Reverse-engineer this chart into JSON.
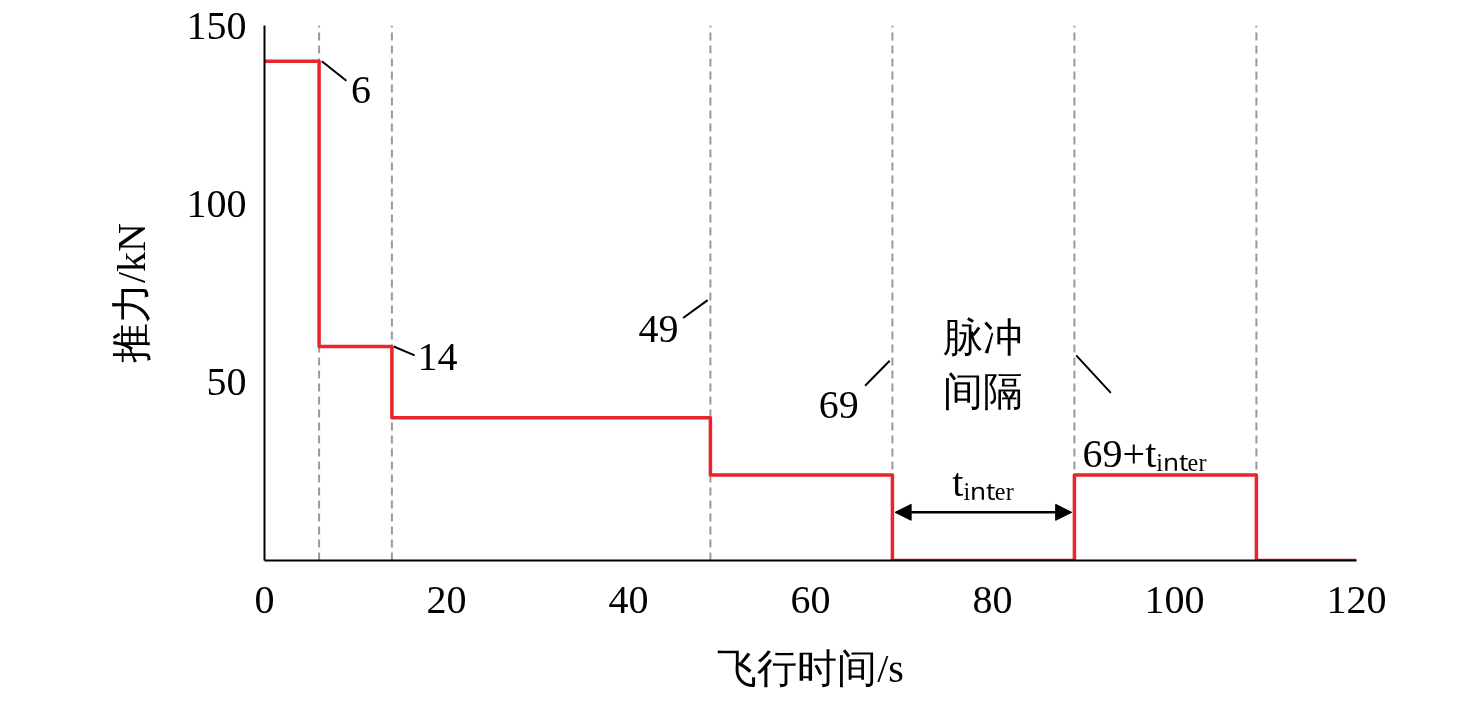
{
  "chart_data": {
    "type": "step",
    "x": [
      0,
      6,
      14,
      49,
      69,
      89,
      109,
      120
    ],
    "values": [
      140,
      60,
      40,
      24,
      0,
      24,
      0,
      0
    ],
    "color": "#e8252b",
    "xlim": [
      0,
      120
    ],
    "ylim": [
      0,
      150
    ],
    "xticks": [
      0,
      20,
      40,
      60,
      80,
      100,
      120
    ],
    "yticks": [
      50,
      100,
      150
    ],
    "xlabel": "飞行时间/s",
    "ylabel": "推力/kN",
    "grid": false,
    "ref_lines": [
      {
        "axis": "x",
        "value": 6,
        "label": "6",
        "color": "#999999",
        "line_style": "dashed"
      },
      {
        "axis": "x",
        "value": 14,
        "label": "14",
        "color": "#999999",
        "line_style": "dashed"
      },
      {
        "axis": "x",
        "value": 49,
        "label": "49",
        "color": "#999999",
        "line_style": "dashed"
      },
      {
        "axis": "x",
        "value": 69,
        "label": "69",
        "color": "#999999",
        "line_style": "dashed"
      },
      {
        "axis": "x",
        "value": 89,
        "label": "69+tᵢₙₜₑᵣ",
        "color": "#999999",
        "line_style": "dashed"
      },
      {
        "axis": "x",
        "value": 109,
        "color": "#999999",
        "line_style": "dashed"
      }
    ],
    "annotations": [
      "脉冲间隔",
      "tᵢₙₜₑᵣ"
    ]
  }
}
